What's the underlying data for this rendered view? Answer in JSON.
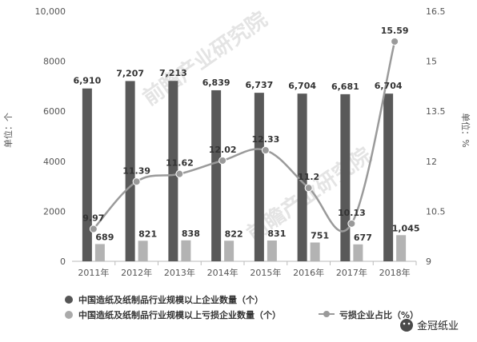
{
  "chart_data": {
    "type": "bar+line",
    "categories": [
      "2011年",
      "2012年",
      "2013年",
      "2014年",
      "2015年",
      "2016年",
      "2017年",
      "2018年"
    ],
    "series": [
      {
        "name": "中国造纸及纸制品行业规模以上企业数量（个）",
        "type": "bar",
        "axis": "left",
        "color": "#595959",
        "values": [
          6910,
          7207,
          7213,
          6839,
          6737,
          6704,
          6681,
          6704
        ],
        "labels": [
          "6,910",
          "7,207",
          "7,213",
          "6,839",
          "6,737",
          "6,704",
          "6,681",
          "6,704"
        ]
      },
      {
        "name": "中国造纸及纸制品行业规模以上亏损企业数量（个）",
        "type": "bar",
        "axis": "left",
        "color": "#b3b3b3",
        "values": [
          689,
          821,
          838,
          822,
          831,
          751,
          677,
          1045
        ],
        "labels": [
          "689",
          "821",
          "838",
          "822",
          "831",
          "751",
          "677",
          "1,045"
        ]
      },
      {
        "name": "亏损企业占比（%）",
        "type": "line",
        "axis": "right",
        "color": "#9a9a9a",
        "values": [
          9.97,
          11.39,
          11.62,
          12.02,
          12.33,
          11.2,
          10.13,
          15.59
        ],
        "labels": [
          "9.97",
          "11.39",
          "11.62",
          "12.02",
          "12.33",
          "11.2",
          "10.13",
          "15.59"
        ]
      }
    ],
    "y_left": {
      "label": "单位：个",
      "ylim": [
        0,
        10000
      ],
      "ticks": [
        "0",
        "2000",
        "4000",
        "6000",
        "8000",
        "10,000"
      ],
      "tick_values": [
        0,
        2000,
        4000,
        6000,
        8000,
        10000
      ]
    },
    "y_right": {
      "label": "单位：%",
      "ylim": [
        9,
        16.5
      ],
      "ticks": [
        "9",
        "10.5",
        "12",
        "13.5",
        "15",
        "16.5"
      ],
      "tick_values": [
        9,
        10.5,
        12,
        13.5,
        15,
        16.5
      ]
    },
    "grid": false,
    "legend_position": "bottom"
  },
  "watermark": "前瞻产业研究院",
  "source_badge": "金冠纸业"
}
